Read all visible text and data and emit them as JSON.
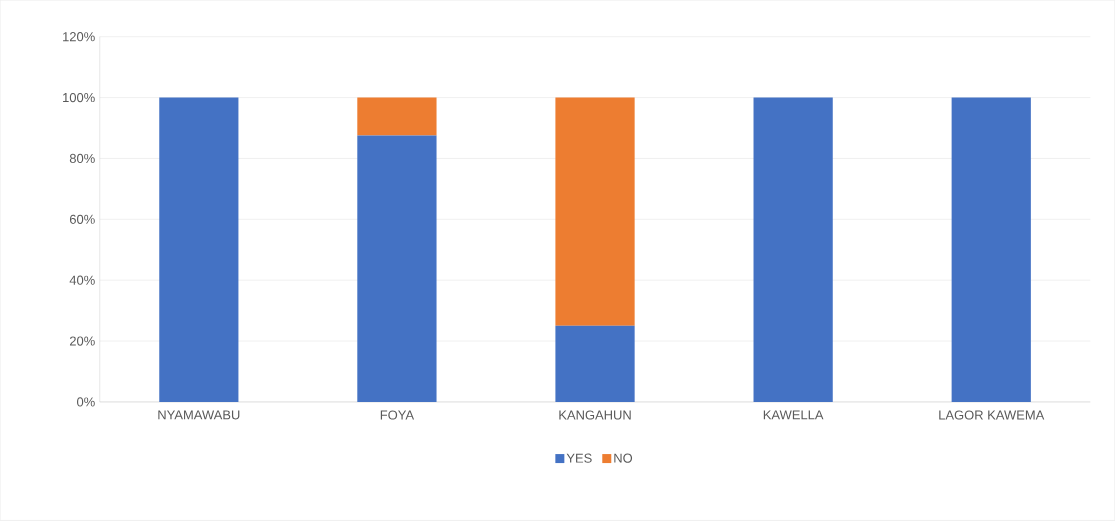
{
  "chart_data": {
    "type": "bar",
    "stacked": true,
    "categories": [
      "NYAMAWABU",
      "FOYA",
      "KANGAHUN",
      "KAWELLA",
      "LAGOR KAWEMA"
    ],
    "series": [
      {
        "name": "YES",
        "color": "#4472c4",
        "values": [
          100,
          87.5,
          25,
          100,
          100
        ]
      },
      {
        "name": "NO",
        "color": "#ed7d31",
        "values": [
          0,
          12.5,
          75,
          0,
          0
        ]
      }
    ],
    "ylim": [
      0,
      120
    ],
    "yticks": [
      {
        "value": 0,
        "label": "0%"
      },
      {
        "value": 20,
        "label": "20%"
      },
      {
        "value": 40,
        "label": "40%"
      },
      {
        "value": 60,
        "label": "60%"
      },
      {
        "value": 80,
        "label": "80%"
      },
      {
        "value": 100,
        "label": "100%"
      },
      {
        "value": 120,
        "label": "120%"
      }
    ],
    "grid": "y",
    "legend": "bottom"
  }
}
